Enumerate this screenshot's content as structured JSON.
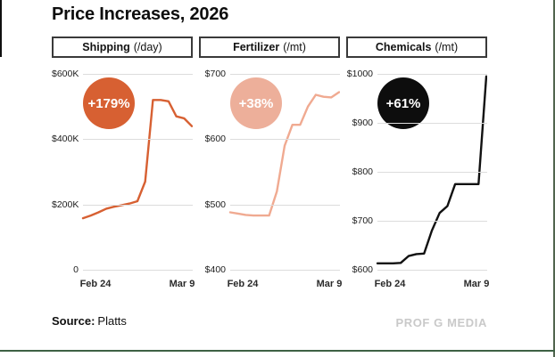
{
  "title": "Price Increases, 2026",
  "footer": {
    "source_label": "Source:",
    "source_value": "Platts",
    "watermark": "PROF G MEDIA"
  },
  "frame": {
    "left_bar": "#101010",
    "right_bar": "#51654e",
    "bottom_rule": "#3d6144"
  },
  "chart_data": [
    {
      "type": "line",
      "panel_label_main": "Shipping",
      "panel_label_unit": "(/day)",
      "badge": {
        "label": "+179%",
        "bg": "#D76032",
        "fg": "#FFFFFF"
      },
      "line_color": "#D76032",
      "grid": true,
      "xticks": [
        "Feb 24",
        "Mar 9"
      ],
      "ylim": [
        0,
        600
      ],
      "y_unit": "thousand USD per day",
      "yticks": [
        {
          "value": 600,
          "label": "$600K"
        },
        {
          "value": 400,
          "label": "$400K"
        },
        {
          "value": 200,
          "label": "$200K"
        },
        {
          "value": 0,
          "label": "0"
        }
      ],
      "values": [
        158,
        166,
        176,
        187,
        193,
        198,
        203,
        210,
        270,
        520,
        520,
        516,
        470,
        464,
        440
      ]
    },
    {
      "type": "line",
      "panel_label_main": "Fertilizer",
      "panel_label_unit": "(/mt)",
      "badge": {
        "label": "+38%",
        "bg": "#EDAF9A",
        "fg": "#FFFFFF"
      },
      "line_color": "#F0AA91",
      "grid": true,
      "xticks": [
        "Feb 24",
        "Mar 9"
      ],
      "ylim": [
        400,
        700
      ],
      "y_unit": "USD per metric ton",
      "yticks": [
        {
          "value": 700,
          "label": "$700"
        },
        {
          "value": 600,
          "label": "$600"
        },
        {
          "value": 500,
          "label": "$500"
        },
        {
          "value": 400,
          "label": "$400"
        }
      ],
      "values": [
        488,
        486,
        484,
        483,
        483,
        483,
        520,
        590,
        622,
        622,
        650,
        668,
        665,
        664,
        672
      ]
    },
    {
      "type": "line",
      "panel_label_main": "Chemicals",
      "panel_label_unit": "(/mt)",
      "badge": {
        "label": "+61%",
        "bg": "#0D0D0D",
        "fg": "#FFFFFF"
      },
      "line_color": "#111111",
      "grid": true,
      "xticks": [
        "Feb 24",
        "Mar 9"
      ],
      "ylim": [
        600,
        1000
      ],
      "y_unit": "USD per metric ton",
      "yticks": [
        {
          "value": 1000,
          "label": "$1000"
        },
        {
          "value": 900,
          "label": "$900"
        },
        {
          "value": 800,
          "label": "$800"
        },
        {
          "value": 700,
          "label": "$700"
        },
        {
          "value": 600,
          "label": "$600"
        }
      ],
      "values": [
        613,
        613,
        613,
        614,
        628,
        632,
        633,
        680,
        716,
        730,
        775,
        775,
        775,
        775,
        995
      ]
    }
  ]
}
